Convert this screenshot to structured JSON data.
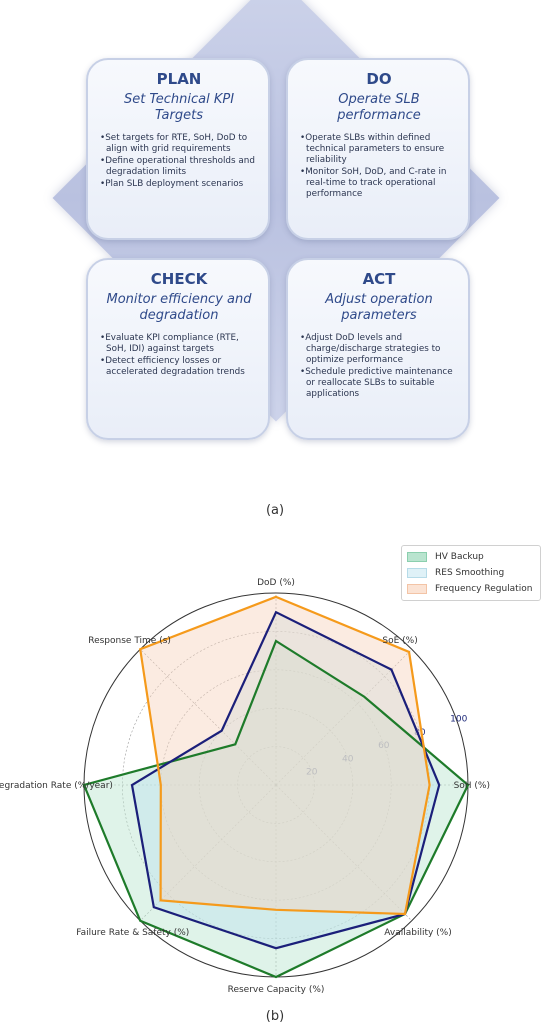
{
  "panel_a": {
    "caption": "(a)",
    "plan": {
      "title": "PLAN",
      "subtitle": "Set Technical KPI Targets",
      "bullets": [
        "Set targets for RTE, SoH, DoD to align with grid requirements",
        "Define operational thresholds and degradation limits",
        "Plan SLB deployment scenarios"
      ]
    },
    "do": {
      "title": "DO",
      "subtitle": "Operate SLB performance",
      "bullets": [
        "Operate SLBs within defined technical parameters to ensure reliability",
        "Monitor SoH, DoD, and C-rate in real-time to track operational performance"
      ]
    },
    "check": {
      "title": "CHECK",
      "subtitle": "Monitor efficiency and degradation",
      "bullets": [
        "Evaluate KPI compliance (RTE, SoH, IDI) against targets",
        "Detect efficiency losses or accelerated degradation trends"
      ]
    },
    "act": {
      "title": "ACT",
      "subtitle": "Adjust operation parameters",
      "bullets": [
        "Adjust DoD levels and charge/discharge strategies to optimize performance",
        "Schedule predictive maintenance or reallocate SLBs to suitable applications"
      ]
    }
  },
  "panel_b": {
    "caption": "(b)"
  },
  "chart_data": {
    "type": "radar",
    "axes": [
      "DoD (%)",
      "SoE (%)",
      "SoH (%)",
      "Availability (%)",
      "Reserve Capacity (%)",
      "Failure Rate & Safety (%)",
      "Degradation Rate (%/year)",
      "Response Time (s)"
    ],
    "r_ticks": [
      20,
      40,
      60,
      80,
      100
    ],
    "rlim": [
      0,
      100
    ],
    "grid": true,
    "legend_position": "top-right",
    "series": [
      {
        "name": "HV Backup",
        "values": [
          75,
          65,
          100,
          95,
          100,
          100,
          100,
          30
        ],
        "color": "#1e7b2a",
        "fill": "#b9e4cf"
      },
      {
        "name": "RES Smoothing",
        "values": [
          90,
          85,
          85,
          95,
          85,
          90,
          75,
          40
        ],
        "color": "#1b1f7a",
        "fill": "#bfe3ee"
      },
      {
        "name": "Frequency Regulation",
        "values": [
          98,
          98,
          80,
          95,
          65,
          85,
          60,
          100
        ],
        "color": "#f59a1b",
        "fill": "#f6d2bd"
      }
    ]
  }
}
